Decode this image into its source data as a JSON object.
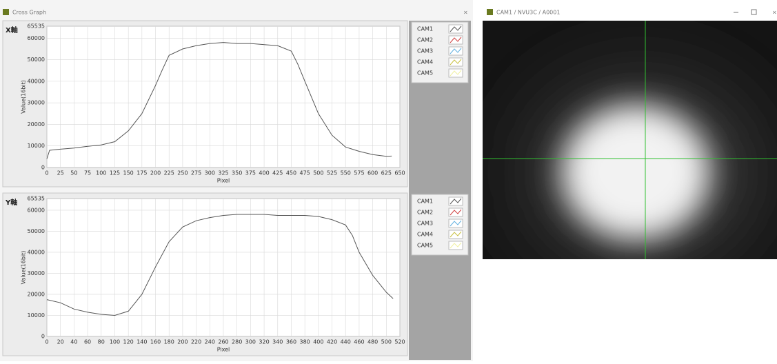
{
  "windows": {
    "left": {
      "title": "Cross Graph"
    },
    "right": {
      "title": "CAM1 / NVU3C / A0001"
    }
  },
  "chart_data": [
    {
      "type": "line",
      "title": "X軸",
      "x_label": "Pixel",
      "y_label": "Value(16bit)",
      "xlim": [
        0,
        650
      ],
      "xticks": [
        0,
        25,
        50,
        75,
        100,
        125,
        150,
        175,
        200,
        225,
        250,
        275,
        300,
        325,
        350,
        375,
        400,
        425,
        450,
        475,
        500,
        525,
        550,
        575,
        600,
        625,
        650
      ],
      "ylim": [
        0,
        65535
      ],
      "yticks": [
        0,
        10000,
        20000,
        30000,
        40000,
        50000,
        60000,
        65535
      ],
      "grid": true,
      "x": [
        0,
        5,
        25,
        50,
        75,
        100,
        125,
        150,
        175,
        200,
        212,
        225,
        250,
        275,
        300,
        325,
        350,
        375,
        400,
        425,
        450,
        462,
        475,
        500,
        525,
        550,
        575,
        600,
        625,
        635
      ],
      "series": [
        {
          "name": "CAM1",
          "color": "#555555",
          "values": [
            4000,
            8000,
            8500,
            9000,
            9800,
            10500,
            12000,
            17000,
            25000,
            38000,
            45000,
            52000,
            55000,
            56500,
            57500,
            58000,
            57500,
            57500,
            57000,
            56500,
            54000,
            48000,
            40000,
            25000,
            15000,
            9500,
            7500,
            6000,
            5200,
            5300
          ]
        },
        {
          "name": "CAM2",
          "color": "#d04040"
        },
        {
          "name": "CAM3",
          "color": "#60b0e0"
        },
        {
          "name": "CAM4",
          "color": "#c8c040"
        },
        {
          "name": "CAM5",
          "color": "#f0f0a0"
        }
      ]
    },
    {
      "type": "line",
      "title": "Y軸",
      "x_label": "Pixel",
      "y_label": "Value(16bit)",
      "xlim": [
        0,
        520
      ],
      "xticks": [
        0,
        20,
        40,
        60,
        80,
        100,
        120,
        140,
        160,
        180,
        200,
        220,
        240,
        260,
        280,
        300,
        320,
        340,
        360,
        380,
        400,
        420,
        440,
        460,
        480,
        500,
        520
      ],
      "ylim": [
        0,
        65535
      ],
      "yticks": [
        0,
        10000,
        20000,
        30000,
        40000,
        50000,
        60000,
        65535
      ],
      "grid": true,
      "x": [
        0,
        20,
        40,
        60,
        80,
        100,
        120,
        140,
        160,
        180,
        200,
        220,
        240,
        260,
        280,
        300,
        320,
        340,
        360,
        380,
        400,
        420,
        440,
        450,
        460,
        480,
        500,
        510
      ],
      "series": [
        {
          "name": "CAM1",
          "color": "#555555",
          "values": [
            17500,
            16000,
            13000,
            11500,
            10500,
            10000,
            12000,
            20000,
            33000,
            45000,
            52000,
            55000,
            56500,
            57500,
            58000,
            58000,
            58000,
            57500,
            57500,
            57500,
            57000,
            55500,
            53000,
            48000,
            40000,
            29000,
            21000,
            18000
          ]
        },
        {
          "name": "CAM2",
          "color": "#d04040"
        },
        {
          "name": "CAM3",
          "color": "#60b0e0"
        },
        {
          "name": "CAM4",
          "color": "#c8c040"
        },
        {
          "name": "CAM5",
          "color": "#f0f0a0"
        }
      ]
    }
  ]
}
